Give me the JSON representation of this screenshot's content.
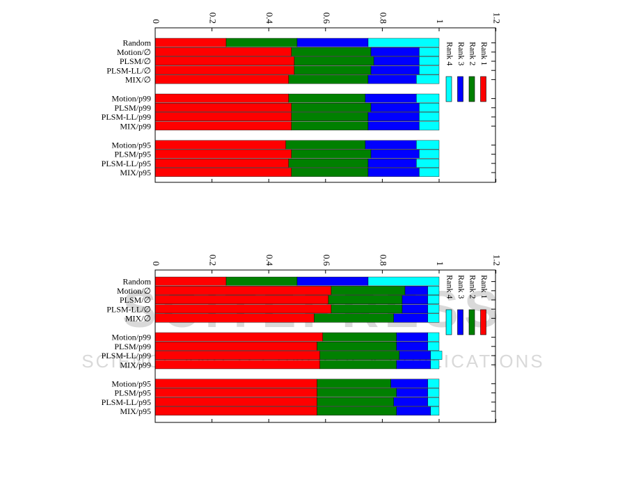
{
  "watermark": {
    "line1": "SCITEPRESS",
    "line2": "SCIENCE AND TECHNOLOGY PUBLICATIONS"
  },
  "chart_data": [
    {
      "type": "bar",
      "orientation": "horizontal-stacked",
      "xlim": [
        0,
        1.2
      ],
      "x_ticks": [
        "0",
        "0.2",
        "0.4",
        "0.6",
        "0.8",
        "1",
        "1.2"
      ],
      "legend_placement": "right, rotated",
      "categories": [
        "Random",
        "Motion/∅",
        "PLSM/∅",
        "PLSM-LL/∅",
        "MIX/∅",
        "Motion/p99",
        "PLSM/p99",
        "PLSM-LL/p99",
        "MIX/p99",
        "Motion/p95",
        "PLSM/p95",
        "PLSM-LL/p95",
        "MIX/p95"
      ],
      "groups": [
        [
          0,
          4
        ],
        [
          5,
          8
        ],
        [
          9,
          12
        ]
      ],
      "series": [
        {
          "name": "Rank 1",
          "color": "#ff0000",
          "values": [
            0.25,
            0.48,
            0.49,
            0.49,
            0.47,
            0.47,
            0.48,
            0.48,
            0.48,
            0.46,
            0.48,
            0.47,
            0.48
          ]
        },
        {
          "name": "Rank 2",
          "color": "#008000",
          "values": [
            0.25,
            0.28,
            0.28,
            0.27,
            0.28,
            0.27,
            0.28,
            0.27,
            0.27,
            0.28,
            0.28,
            0.28,
            0.27
          ]
        },
        {
          "name": "Rank 3",
          "color": "#0000ff",
          "values": [
            0.25,
            0.17,
            0.16,
            0.17,
            0.17,
            0.18,
            0.17,
            0.18,
            0.18,
            0.18,
            0.17,
            0.17,
            0.18
          ]
        },
        {
          "name": "Rank 4",
          "color": "#00ffff",
          "values": [
            0.25,
            0.07,
            0.07,
            0.07,
            0.08,
            0.08,
            0.07,
            0.07,
            0.07,
            0.08,
            0.07,
            0.08,
            0.07
          ]
        }
      ]
    },
    {
      "type": "bar",
      "orientation": "horizontal-stacked",
      "xlim": [
        0,
        1.2
      ],
      "x_ticks": [
        "0",
        "0.2",
        "0.4",
        "0.6",
        "0.8",
        "1",
        "1.2"
      ],
      "legend_placement": "right, rotated",
      "categories": [
        "Random",
        "Motion/∅",
        "PLSM/∅",
        "PLSM-LL/∅",
        "MIX/∅",
        "Motion/p99",
        "PLSM/p99",
        "PLSM-LL/p99",
        "MIX/p99",
        "Motion/p95",
        "PLSM/p95",
        "PLSM-LL/p95",
        "MIX/p95"
      ],
      "groups": [
        [
          0,
          4
        ],
        [
          5,
          8
        ],
        [
          9,
          12
        ]
      ],
      "series": [
        {
          "name": "Rank 1",
          "color": "#ff0000",
          "values": [
            0.25,
            0.62,
            0.61,
            0.62,
            0.56,
            0.59,
            0.57,
            0.58,
            0.58,
            0.57,
            0.57,
            0.57,
            0.57
          ]
        },
        {
          "name": "Rank 2",
          "color": "#008000",
          "values": [
            0.25,
            0.26,
            0.26,
            0.25,
            0.28,
            0.26,
            0.28,
            0.28,
            0.27,
            0.26,
            0.28,
            0.27,
            0.28
          ]
        },
        {
          "name": "Rank 3",
          "color": "#0000ff",
          "values": [
            0.25,
            0.08,
            0.09,
            0.09,
            0.12,
            0.11,
            0.11,
            0.11,
            0.12,
            0.13,
            0.11,
            0.12,
            0.12
          ]
        },
        {
          "name": "Rank 4",
          "color": "#00ffff",
          "values": [
            0.25,
            0.04,
            0.04,
            0.04,
            0.04,
            0.04,
            0.04,
            0.04,
            0.03,
            0.04,
            0.04,
            0.04,
            0.03
          ]
        }
      ]
    }
  ]
}
